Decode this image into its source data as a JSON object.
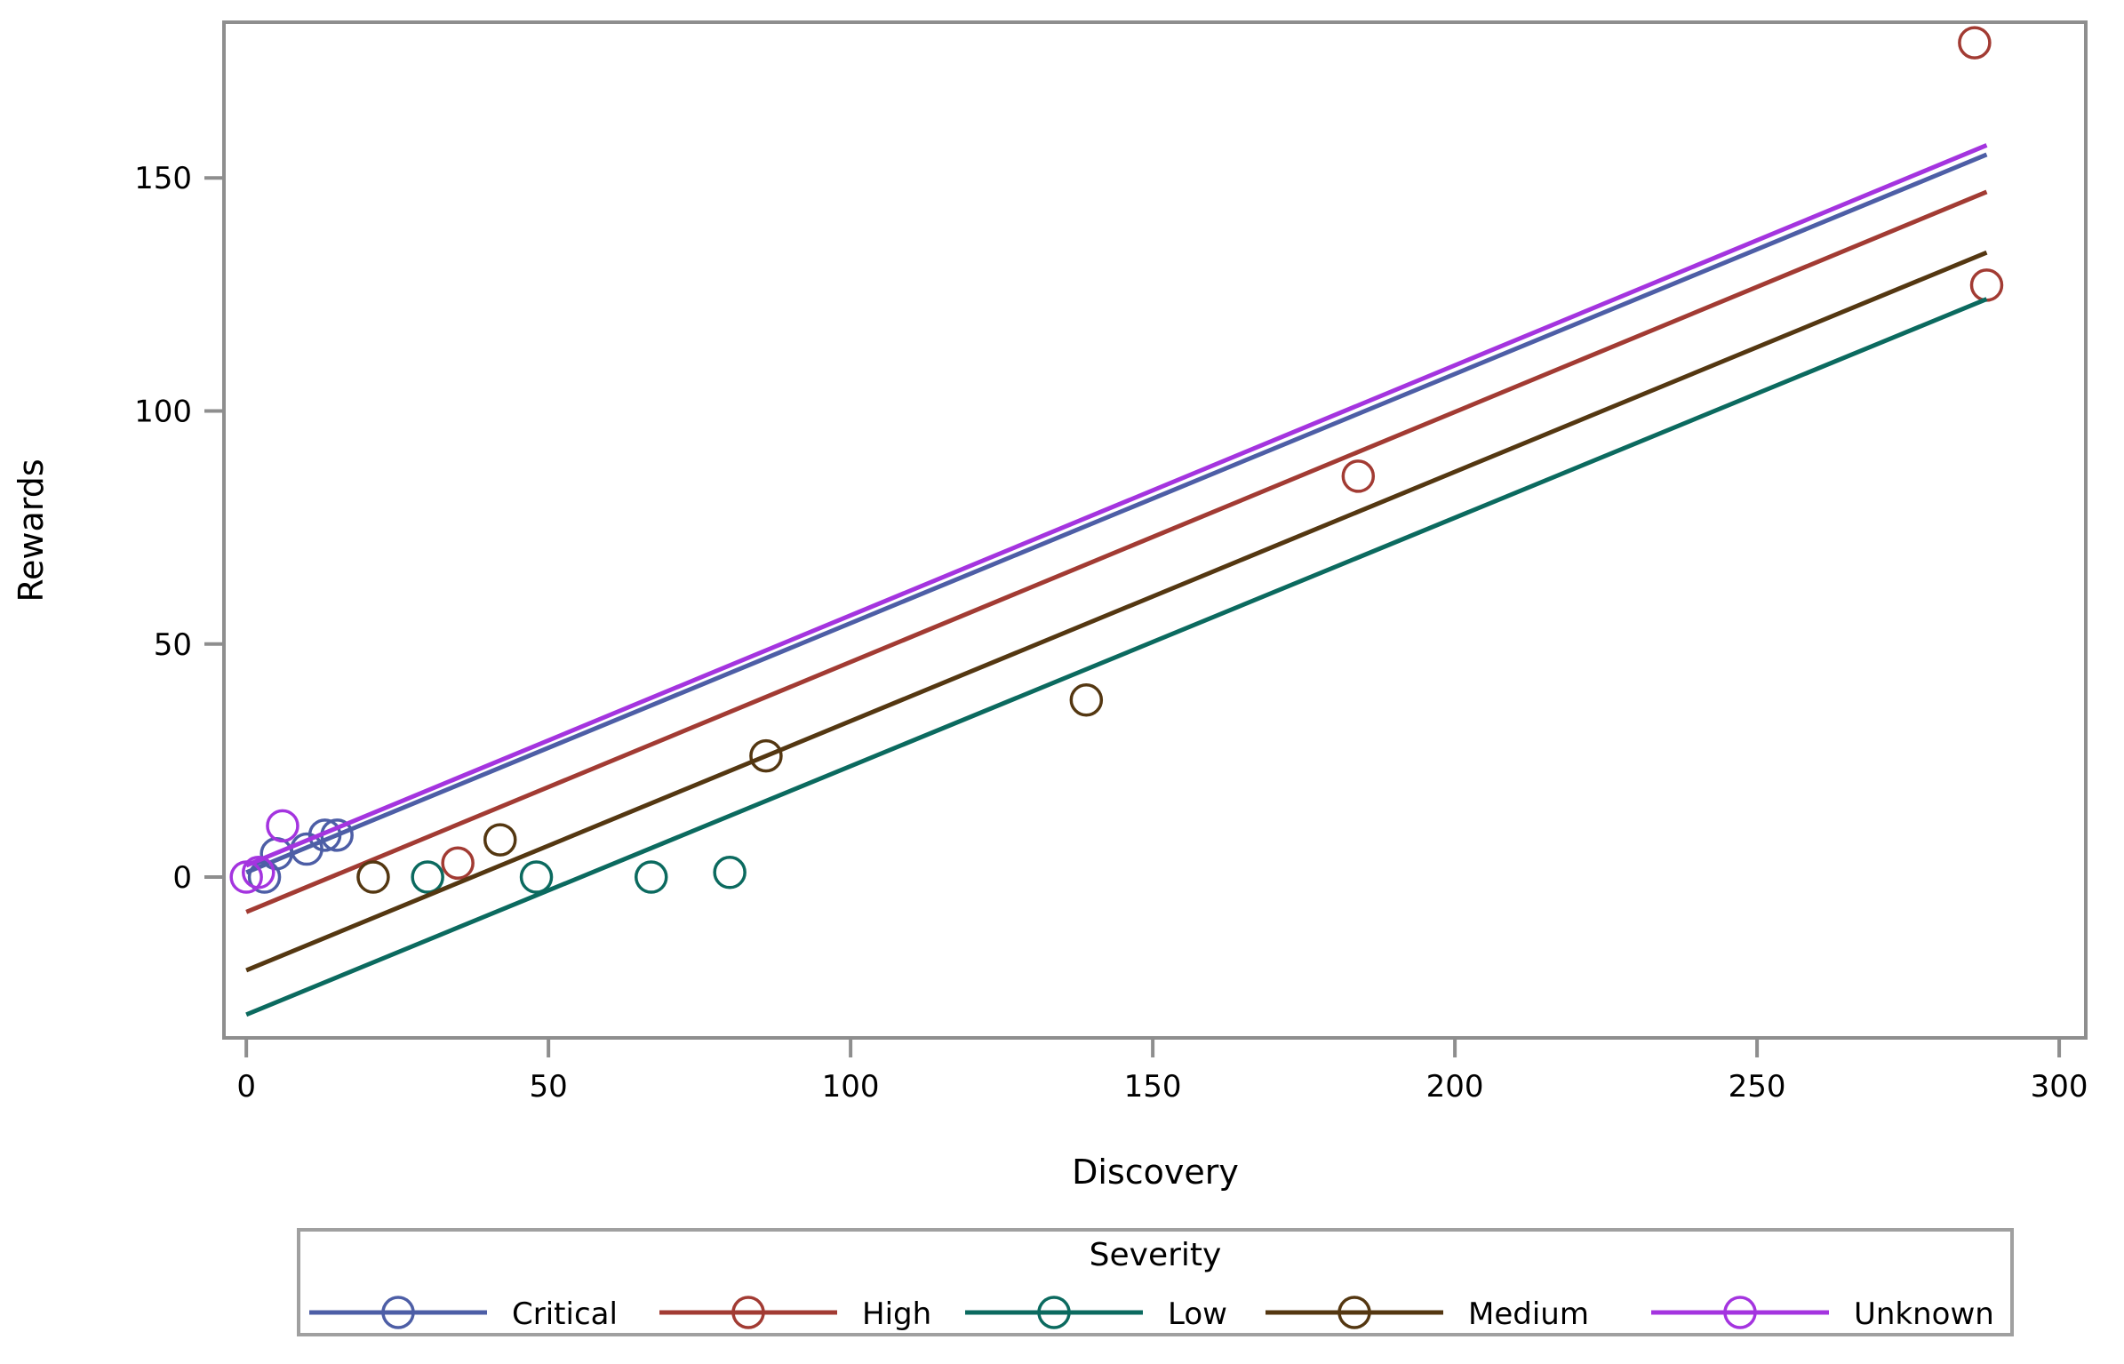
{
  "chart_data": {
    "type": "scatter",
    "title": "",
    "xlabel": "Discovery",
    "ylabel": "Rewards",
    "legend_title": "Severity",
    "legend_position": "bottom",
    "grid": false,
    "x_ticks": [
      0,
      50,
      100,
      150,
      200,
      250,
      300
    ],
    "y_ticks": [
      0,
      50,
      100,
      150
    ],
    "xlim": [
      -3.7,
      304.4
    ],
    "ylim": [
      -34.5,
      183.4
    ],
    "series": [
      {
        "name": "Critical",
        "color": "#4d5ea6",
        "points": [
          [
            3,
            0
          ],
          [
            5,
            5
          ],
          [
            10,
            6
          ],
          [
            13,
            9
          ],
          [
            15,
            9
          ]
        ],
        "regression": {
          "x": [
            0,
            288
          ],
          "y": [
            1.0,
            155.0
          ]
        }
      },
      {
        "name": "High",
        "color": "#a23b33",
        "points": [
          [
            35,
            3
          ],
          [
            184,
            86
          ],
          [
            286,
            179
          ],
          [
            288,
            127
          ]
        ],
        "regression": {
          "x": [
            0,
            288
          ],
          "y": [
            -7.5,
            147.0
          ]
        }
      },
      {
        "name": "Low",
        "color": "#0b6a5f",
        "points": [
          [
            30,
            0
          ],
          [
            48,
            0
          ],
          [
            67,
            0
          ],
          [
            80,
            1
          ]
        ],
        "regression": {
          "x": [
            0,
            288
          ],
          "y": [
            -29.5,
            124.0
          ]
        }
      },
      {
        "name": "Medium",
        "color": "#543711",
        "points": [
          [
            21,
            0
          ],
          [
            42,
            8
          ],
          [
            86,
            26
          ],
          [
            139,
            38
          ]
        ],
        "regression": {
          "x": [
            0,
            288
          ],
          "y": [
            -20.0,
            134.0
          ]
        }
      },
      {
        "name": "Unknown",
        "color": "#a434df",
        "points": [
          [
            0,
            0
          ],
          [
            2,
            1
          ],
          [
            6,
            11
          ]
        ],
        "regression": {
          "x": [
            0,
            288
          ],
          "y": [
            2.5,
            157.0
          ]
        }
      }
    ]
  },
  "colors": {
    "axis": "#8e8e8e",
    "legend_border": "#a0a0a0",
    "text": "#000000",
    "background": "#ffffff"
  }
}
